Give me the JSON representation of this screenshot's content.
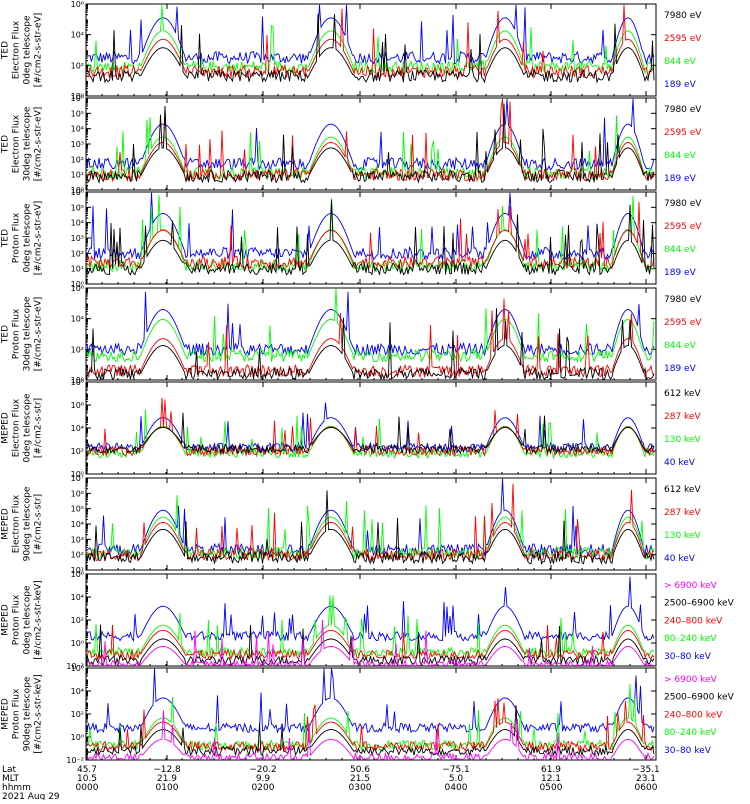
{
  "figure": {
    "date_label": "2021 Aug 29",
    "footer_row_labels": [
      "Lat",
      "MLT",
      "hhmm"
    ],
    "footer_columns": [
      {
        "lat": "45.7",
        "mlt": "10.5",
        "hhmm": "0000"
      },
      {
        "lat": "−12.8",
        "mlt": "21.9",
        "hhmm": "0100"
      },
      {
        "lat": "−20.2",
        "mlt": "9.9",
        "hhmm": "0200"
      },
      {
        "lat": "50.6",
        "mlt": "21.5",
        "hhmm": "0300"
      },
      {
        "lat": "−75.1",
        "mlt": "5.0",
        "hhmm": "0400"
      },
      {
        "lat": "61.9",
        "mlt": "12.1",
        "hhmm": "0500"
      },
      {
        "lat": "−35.1",
        "mlt": "23.1",
        "hhmm": "0600"
      }
    ],
    "colors": {
      "blue": "#0000ff",
      "red": "#ff0000",
      "green": "#00ff00",
      "black": "#000000",
      "magenta": "#ff00ff"
    }
  },
  "chart_data": [
    {
      "type": "line",
      "ylabel": [
        "TED",
        "Electron Flux",
        "0deg telescope",
        "[#/cm2-s-str-eV]"
      ],
      "yscale": "log",
      "ylim_exp": [
        0,
        6
      ],
      "ytick_labels": [
        "10⁰",
        "10²",
        "10⁴",
        "10⁶"
      ],
      "legend": [
        {
          "label": "7980 eV",
          "color": "black"
        },
        {
          "label": "2595 eV",
          "color": "red"
        },
        {
          "label": "844 eV",
          "color": "green"
        },
        {
          "label": "189 eV",
          "color": "blue"
        }
      ],
      "series_level_exp": {
        "blue": 2.5,
        "green": 1.9,
        "red": 1.6,
        "black": 1.3
      }
    },
    {
      "type": "line",
      "ylabel": [
        "TED",
        "Electron Flux",
        "30deg telescope",
        "[#/cm2-s-str-eV]"
      ],
      "yscale": "log",
      "ylim_exp": [
        0,
        6
      ],
      "ytick_labels": [
        "10⁰",
        "10¹",
        "10²",
        "10³",
        "10⁴",
        "10⁵",
        "10⁶"
      ],
      "legend": [
        {
          "label": "7980 eV",
          "color": "black"
        },
        {
          "label": "2595 eV",
          "color": "red"
        },
        {
          "label": "844 eV",
          "color": "green"
        },
        {
          "label": "189 eV",
          "color": "blue"
        }
      ],
      "series_level_exp": {
        "blue": 1.7,
        "green": 1.1,
        "red": 1.0,
        "black": 0.9
      }
    },
    {
      "type": "line",
      "ylabel": [
        "TED",
        "Proton Flux",
        "0deg telescope",
        "[#/cm2-s-str-eV]"
      ],
      "yscale": "log",
      "ylim_exp": [
        0,
        6
      ],
      "ytick_labels": [
        "10⁰",
        "10¹",
        "10²",
        "10³",
        "10⁴",
        "10⁵",
        "10⁶"
      ],
      "legend": [
        {
          "label": "7980 eV",
          "color": "black"
        },
        {
          "label": "2595 eV",
          "color": "red"
        },
        {
          "label": "844 eV",
          "color": "green"
        },
        {
          "label": "189 eV",
          "color": "blue"
        }
      ],
      "series_level_exp": {
        "blue": 2.0,
        "green": 1.2,
        "red": 1.4,
        "black": 1.0
      }
    },
    {
      "type": "line",
      "ylabel": [
        "TED",
        "Proton Flux",
        "30deg telescope",
        "[#/cm2-s-str-eV]"
      ],
      "yscale": "log",
      "ylim_exp": [
        0,
        6
      ],
      "ytick_labels": [
        "10⁰",
        "10²",
        "10⁴",
        "10⁶"
      ],
      "legend": [
        {
          "label": "7980 eV",
          "color": "black"
        },
        {
          "label": "2595 eV",
          "color": "red"
        },
        {
          "label": "844 eV",
          "color": "green"
        },
        {
          "label": "189 eV",
          "color": "blue"
        }
      ],
      "series_level_exp": {
        "blue": 2.0,
        "green": 1.6,
        "red": 0.6,
        "black": 0.4
      }
    },
    {
      "type": "line",
      "ylabel": [
        "MEPED",
        "Electron Flux",
        "0deg telescope",
        "[#/cm2-s-str]"
      ],
      "yscale": "log",
      "ylim_exp": [
        0,
        8
      ],
      "ytick_labels": [
        "10⁰",
        "10²",
        "10⁴",
        "10⁶",
        "10⁸"
      ],
      "legend": [
        {
          "label": "612 keV",
          "color": "black"
        },
        {
          "label": "287 keV",
          "color": "red"
        },
        {
          "label": "130 keV",
          "color": "green"
        },
        {
          "label": "40 keV",
          "color": "blue"
        }
      ],
      "series_level_exp": {
        "blue": 2.3,
        "green": 1.8,
        "red": 2.0,
        "black": 2.2
      }
    },
    {
      "type": "line",
      "ylabel": [
        "MEPED",
        "Electron Flux",
        "90deg telescope",
        "[#/cm2-s-str]"
      ],
      "yscale": "log",
      "ylim_exp": [
        1,
        7
      ],
      "ytick_labels": [
        "10¹",
        "10²",
        "10³",
        "10⁴",
        "10⁵",
        "10⁶",
        "10⁷"
      ],
      "legend": [
        {
          "label": "612 keV",
          "color": "black"
        },
        {
          "label": "287 keV",
          "color": "red"
        },
        {
          "label": "130 keV",
          "color": "green"
        },
        {
          "label": "40 keV",
          "color": "blue"
        }
      ],
      "series_level_exp": {
        "blue": 2.3,
        "green": 2.1,
        "red": 2.0,
        "black": 1.8
      }
    },
    {
      "type": "line",
      "ylabel": [
        "MEPED",
        "Proton Flux",
        "0deg telescope",
        "[#/cm2-s-str-keV]"
      ],
      "yscale": "log",
      "ylim_exp": [
        -2,
        6
      ],
      "ytick_labels": [
        "10⁻²",
        "10⁰",
        "10²",
        "10⁴",
        "10⁶"
      ],
      "legend": [
        {
          "label": "> 6900 keV",
          "color": "magenta"
        },
        {
          "label": "2500–6900 keV",
          "color": "black"
        },
        {
          "label": "240–800 keV",
          "color": "red"
        },
        {
          "label": "80–240 keV",
          "color": "green"
        },
        {
          "label": "30–80 keV",
          "color": "blue"
        }
      ],
      "series_level_exp": {
        "blue": 0.6,
        "green": -0.8,
        "red": -1.0,
        "black": -1.5,
        "magenta": -1.9
      }
    },
    {
      "type": "line",
      "ylabel": [
        "MEPED",
        "Proton Flux",
        "90deg telescope",
        "[#/cm2-s-str-keV]"
      ],
      "yscale": "log",
      "ylim_exp": [
        -2,
        6
      ],
      "ytick_labels": [
        "10⁻²",
        "10⁰",
        "10²",
        "10⁴",
        "10⁶"
      ],
      "legend": [
        {
          "label": "> 6900 keV",
          "color": "magenta"
        },
        {
          "label": "2500–6900 keV",
          "color": "black"
        },
        {
          "label": "240–800 keV",
          "color": "red"
        },
        {
          "label": "80–240 keV",
          "color": "green"
        },
        {
          "label": "30–80 keV",
          "color": "blue"
        }
      ],
      "series_level_exp": {
        "blue": 0.8,
        "green": -0.7,
        "red": -0.8,
        "black": -1.2,
        "magenta": -1.8
      }
    }
  ]
}
